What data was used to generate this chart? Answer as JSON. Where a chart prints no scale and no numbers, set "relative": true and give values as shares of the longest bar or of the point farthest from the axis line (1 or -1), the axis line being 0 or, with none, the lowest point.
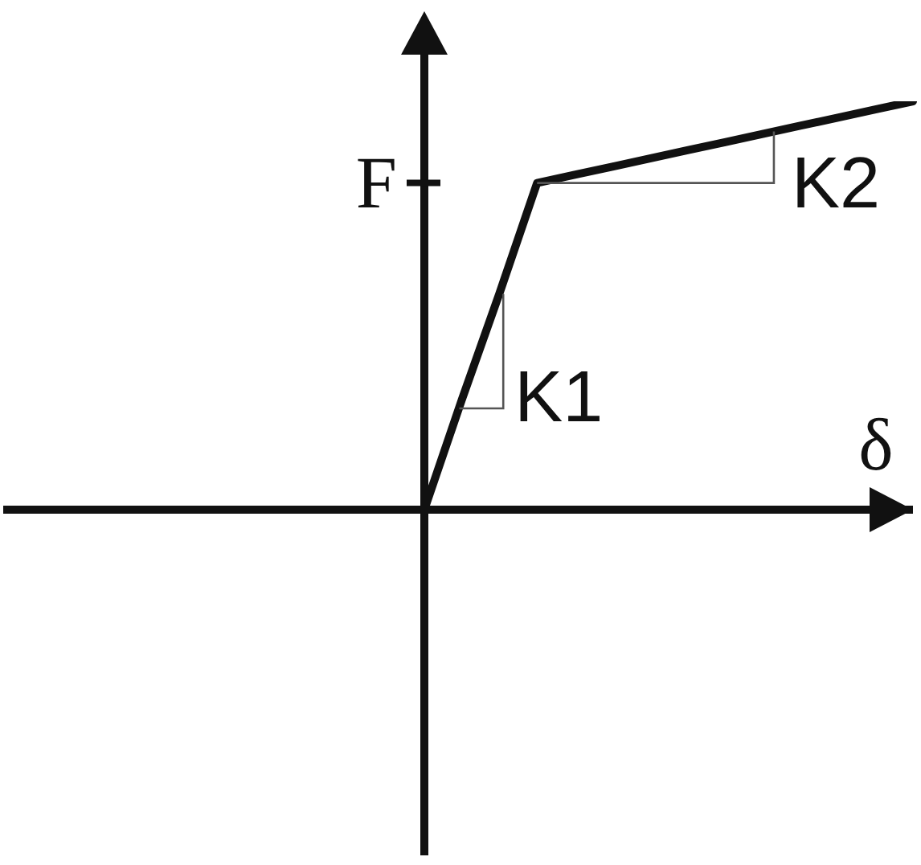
{
  "chart_data": {
    "type": "line",
    "relative": true,
    "xlabel": "δ",
    "ylabel": "F",
    "categories": [
      null,
      null,
      null,
      null,
      null,
      null,
      null,
      null,
      null,
      null,
      null,
      null,
      null,
      null
    ],
    "values": [
      0,
      0.27,
      0.53,
      0.8,
      0.82,
      0.84,
      0.86,
      0.88,
      0.9,
      0.92,
      0.94,
      0.96,
      0.98,
      1
    ],
    "color": "#111111",
    "annotations": [
      "K1",
      "K2"
    ]
  }
}
